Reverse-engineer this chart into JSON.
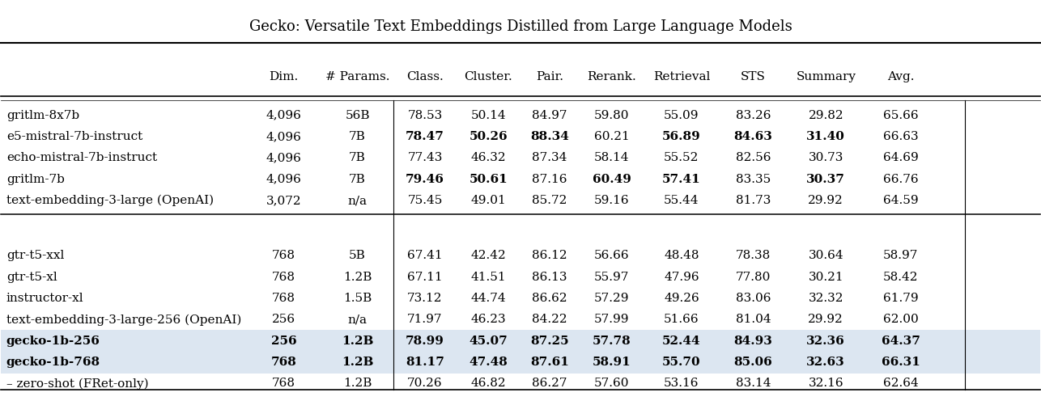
{
  "title": "Gecko: Versatile Text Embeddings Distilled from Large Language Models",
  "col_headers": [
    "",
    "Dim.",
    "# Params.",
    "Class.",
    "Cluster.",
    "Pair.",
    "Rerank.",
    "Retrieval",
    "STS",
    "Summary",
    "Avg."
  ],
  "group1": [
    [
      "gritlm-8x7b",
      "4,096",
      "56B",
      "78.53",
      "50.14",
      "84.97",
      "59.80",
      "55.09",
      "83.26",
      "29.82",
      "65.66"
    ],
    [
      "e5-mistral-7b-instruct",
      "4,096",
      "7B",
      "78.47",
      "50.26",
      "88.34",
      "60.21",
      "56.89",
      "84.63",
      "31.40",
      "66.63"
    ],
    [
      "echo-mistral-7b-instruct",
      "4,096",
      "7B",
      "77.43",
      "46.32",
      "87.34",
      "58.14",
      "55.52",
      "82.56",
      "30.73",
      "64.69"
    ],
    [
      "gritlm-7b",
      "4,096",
      "7B",
      "79.46",
      "50.61",
      "87.16",
      "60.49",
      "57.41",
      "83.35",
      "30.37",
      "66.76"
    ],
    [
      "text-embedding-3-large (OpenAI)",
      "3,072",
      "n/a",
      "75.45",
      "49.01",
      "85.72",
      "59.16",
      "55.44",
      "81.73",
      "29.92",
      "64.59"
    ]
  ],
  "group2": [
    [
      "gtr-t5-xxl",
      "768",
      "5B",
      "67.41",
      "42.42",
      "86.12",
      "56.66",
      "48.48",
      "78.38",
      "30.64",
      "58.97"
    ],
    [
      "gtr-t5-xl",
      "768",
      "1.2B",
      "67.11",
      "41.51",
      "86.13",
      "55.97",
      "47.96",
      "77.80",
      "30.21",
      "58.42"
    ],
    [
      "instructor-xl",
      "768",
      "1.5B",
      "73.12",
      "44.74",
      "86.62",
      "57.29",
      "49.26",
      "83.06",
      "32.32",
      "61.79"
    ],
    [
      "text-embedding-3-large-256 (OpenAI)",
      "256",
      "n/a",
      "71.97",
      "46.23",
      "84.22",
      "57.99",
      "51.66",
      "81.04",
      "29.92",
      "62.00"
    ],
    [
      "gecko-1b-256",
      "256",
      "1.2B",
      "78.99",
      "45.07",
      "87.25",
      "57.78",
      "52.44",
      "84.93",
      "32.36",
      "64.37"
    ],
    [
      "gecko-1b-768",
      "768",
      "1.2B",
      "81.17",
      "47.48",
      "87.61",
      "58.91",
      "55.70",
      "85.06",
      "32.63",
      "66.31"
    ],
    [
      "– zero-shot (FRet-only)",
      "768",
      "1.2B",
      "70.26",
      "46.82",
      "86.27",
      "57.60",
      "53.16",
      "83.14",
      "32.16",
      "62.64"
    ]
  ],
  "bold_g1": {
    "1": [
      3,
      4,
      5,
      7,
      8,
      9
    ],
    "3": [
      3,
      4,
      6,
      7,
      9
    ]
  },
  "bold_g2_row_names": [
    4,
    5
  ],
  "bold_g2": {
    "4": [
      0,
      1,
      2,
      3,
      4,
      5,
      6,
      7,
      8,
      9,
      10
    ],
    "5": [
      0,
      1,
      2,
      3,
      4,
      5,
      6,
      7,
      8,
      9,
      10
    ]
  },
  "highlight_rows_g2": [
    4,
    5
  ],
  "highlight_color": "#dce6f1",
  "bg_color": "#ffffff",
  "text_color": "#000000",
  "title_fontsize": 13,
  "header_fontsize": 11,
  "cell_fontsize": 11,
  "font_family": "DejaVu Serif"
}
